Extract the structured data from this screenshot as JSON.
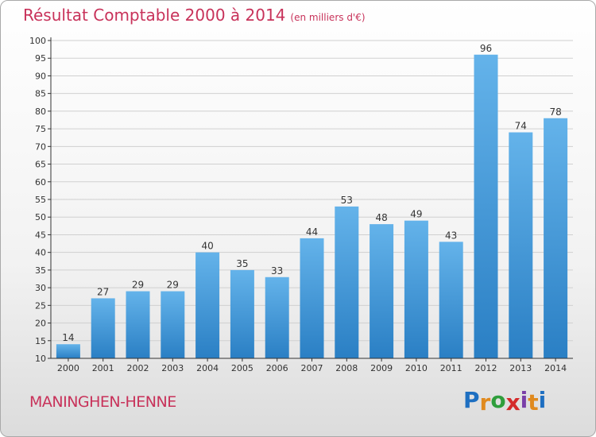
{
  "header": {
    "title": "Résultat Comptable 2000 à 2014",
    "subtitle": "(en milliers d'€)"
  },
  "commune": "MANINGHEN-HENNE",
  "logo": {
    "text": "Proxiti",
    "letters": [
      {
        "ch": "P",
        "color": "#1e6fc1"
      },
      {
        "ch": "r",
        "color": "#e08a1e"
      },
      {
        "ch": "o",
        "color": "#2f9e3c"
      },
      {
        "ch": "x",
        "color": "#d42a2a"
      },
      {
        "ch": "i",
        "color": "#7a3fa8"
      },
      {
        "ch": "t",
        "color": "#e08a1e"
      },
      {
        "ch": "i",
        "color": "#1e6fc1"
      }
    ]
  },
  "chart_data": {
    "type": "bar",
    "categories": [
      "2000",
      "2001",
      "2002",
      "2003",
      "2004",
      "2005",
      "2006",
      "2007",
      "2008",
      "2009",
      "2010",
      "2011",
      "2012",
      "2013",
      "2014"
    ],
    "values": [
      14,
      27,
      29,
      29,
      40,
      35,
      33,
      44,
      53,
      48,
      49,
      43,
      96,
      74,
      78
    ],
    "title": "Résultat Comptable 2000 à 2014",
    "subtitle": "(en milliers d'€)",
    "xlabel": "",
    "ylabel": "",
    "ylim": [
      10,
      100
    ],
    "yticks": [
      10,
      15,
      20,
      25,
      30,
      35,
      40,
      45,
      50,
      55,
      60,
      65,
      70,
      75,
      80,
      85,
      90,
      95,
      100
    ],
    "grid": true,
    "legend": "none",
    "colors": {
      "bar_top": "#64b3ea",
      "bar_bottom": "#2a7fc4",
      "grid": "#d0d0d0",
      "axis": "#333333",
      "title": "#c8325a"
    }
  }
}
